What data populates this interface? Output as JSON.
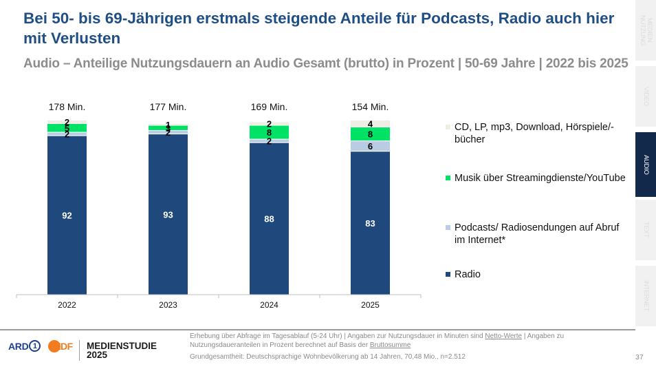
{
  "header": {
    "title": "Bei 50- bis 69-Jährigen erstmals steigende Anteile für Podcasts, Radio auch hier mit Verlusten",
    "subtitle": "Audio – Anteilige Nutzungsdauern an Audio Gesamt (brutto) in Prozent | 50-69 Jahre | 2022 bis 2025"
  },
  "sidebar": {
    "tabs": [
      {
        "label": "MEDIEN\nNUTZUNG",
        "active": false
      },
      {
        "label": "VIDEO",
        "active": false
      },
      {
        "label": "AUDIO",
        "active": true
      },
      {
        "label": "TEXT",
        "active": false
      },
      {
        "label": "INTERNET",
        "active": false
      }
    ]
  },
  "chart_data": {
    "type": "bar",
    "stacked": true,
    "title": "Audio – Anteilige Nutzungsdauern an Audio Gesamt (brutto) in Prozent | 50-69 Jahre | 2022 bis 2025",
    "xlabel": "",
    "ylabel": "",
    "ylim": [
      0,
      100
    ],
    "grid": false,
    "legend_position": "right",
    "categories": [
      "2022",
      "2023",
      "2024",
      "2025"
    ],
    "totals": [
      "178 Min.",
      "177 Min.",
      "169 Min.",
      "154 Min."
    ],
    "series": [
      {
        "name": "Radio",
        "color": "#1f497d",
        "label_color": "#ffffff",
        "values": [
          92,
          93,
          88,
          83
        ]
      },
      {
        "name": "Podcasts/ Radiosendungen auf Abruf im Internet*",
        "color": "#b8cce4",
        "label_color": "#000000",
        "values": [
          2,
          2,
          2,
          6
        ]
      },
      {
        "name": "Musik über Streamingdienste/YouTube",
        "color": "#00e266",
        "label_color": "#000000",
        "values": [
          5,
          3,
          8,
          8
        ]
      },
      {
        "name": "CD, LP, mp3, Download, Hörspiele/-bücher",
        "color": "#eeeee2",
        "label_color": "#000000",
        "values": [
          2,
          1,
          2,
          4
        ]
      }
    ]
  },
  "legend": {
    "items": [
      {
        "label": "CD, LP, mp3, Download, Hörspiele/-bücher",
        "color": "#eeeee2"
      },
      {
        "label": "Musik über Streamingdienste/YouTube",
        "color": "#00e266"
      },
      {
        "label": "Podcasts/ Radiosendungen auf Abruf im Internet*",
        "color": "#b8cce4"
      },
      {
        "label": "Radio",
        "color": "#1f497d"
      }
    ]
  },
  "footer": {
    "brand_line1": "MEDIENSTUDIE",
    "brand_line2": "2025",
    "ard_text": "ARD",
    "ard_one": "1",
    "zdf_text": "ZDF",
    "note_part1": "Erhebung über Abfrage im Tagesablauf (5-24 Uhr) | Angaben zur Nutzungsdauer in Minuten sind ",
    "note_link1": "Netto-Werte",
    "note_part2": " | Angaben zu Nutzungsdaueranteilen in Prozent berechnet auf Basis der ",
    "note_link2": "Bruttosumme",
    "base": "Grundgesamtheit: Deutschsprachige Wohnbevölkerung ab 14 Jahren, 70,48 Mio., n=2.512",
    "page_number": "37"
  }
}
